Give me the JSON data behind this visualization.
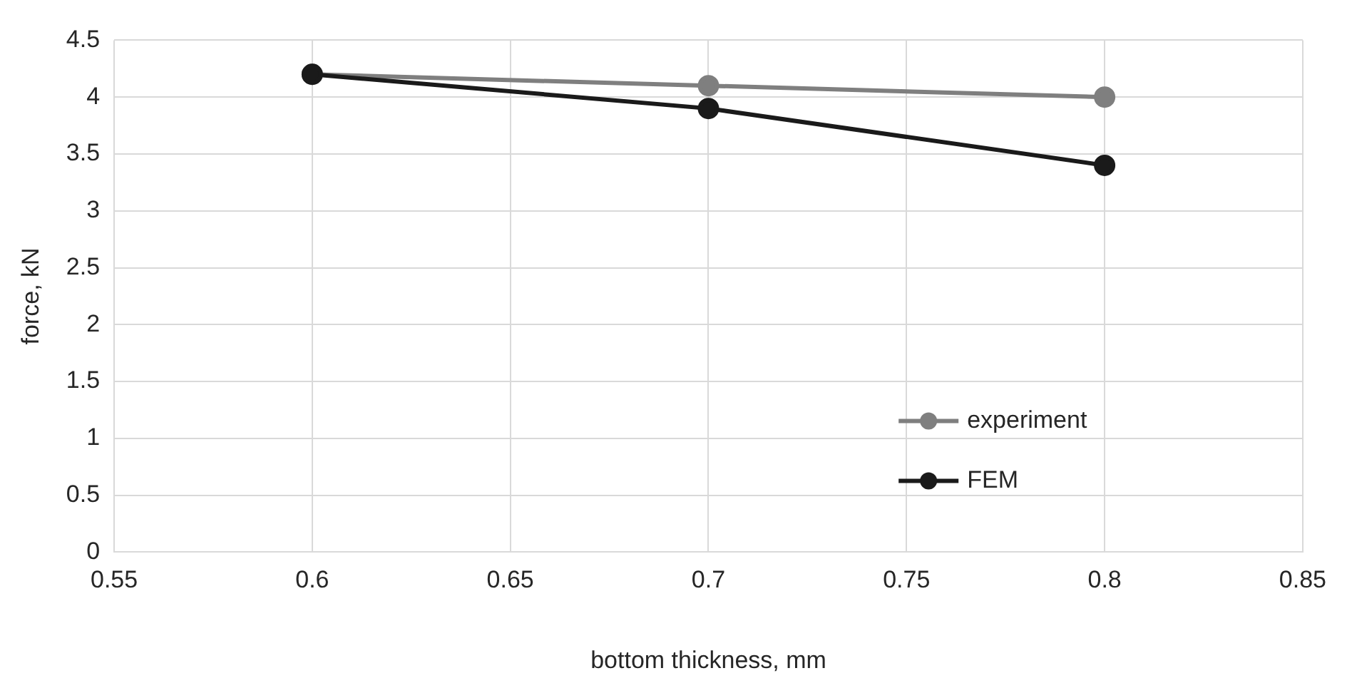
{
  "chart_data": {
    "type": "line",
    "xlabel": "bottom thickness, mm",
    "ylabel": "force, kN",
    "xlim": [
      0.55,
      0.85
    ],
    "xticks": [
      0.55,
      0.6,
      0.65,
      0.7,
      0.75,
      0.8,
      0.85
    ],
    "ylim": [
      0,
      4.5
    ],
    "yticks": [
      0,
      0.5,
      1,
      1.5,
      2,
      2.5,
      3,
      3.5,
      4,
      4.5
    ],
    "grid": true,
    "legend": "bottom right",
    "marker": "circle",
    "line_style": "solid",
    "series": [
      {
        "name": "experiment",
        "color": "#7f7f7f",
        "x": [
          0.6,
          0.7,
          0.8
        ],
        "values": [
          4.2,
          4.1,
          4.0
        ]
      },
      {
        "name": "FEM",
        "color": "#1a1a1a",
        "x": [
          0.6,
          0.7,
          0.8
        ],
        "values": [
          4.2,
          3.9,
          3.4
        ]
      }
    ]
  }
}
